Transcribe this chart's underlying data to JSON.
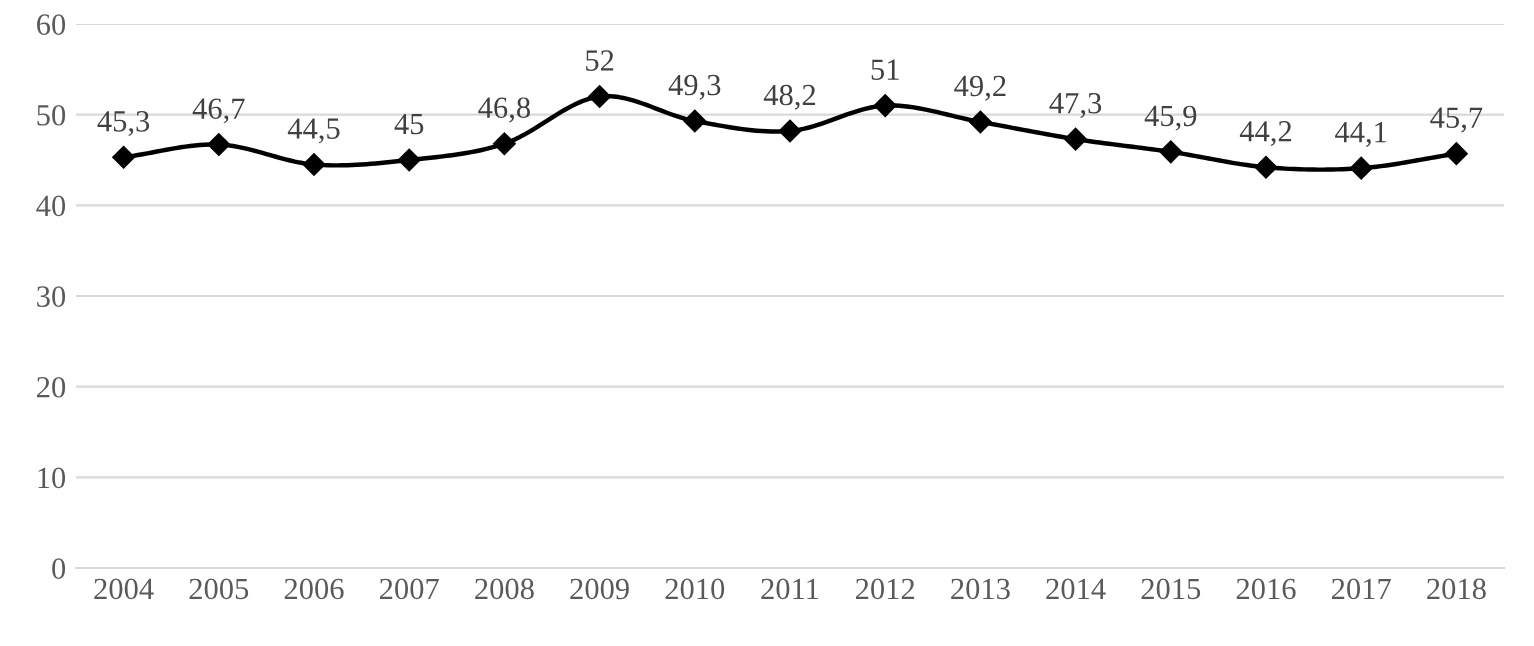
{
  "chart_data": {
    "type": "line",
    "categories": [
      "2004",
      "2005",
      "2006",
      "2007",
      "2008",
      "2009",
      "2010",
      "2011",
      "2012",
      "2013",
      "2014",
      "2015",
      "2016",
      "2017",
      "2018"
    ],
    "series": [
      {
        "color": "#000000",
        "values": [
          45.3,
          46.7,
          44.5,
          45,
          46.8,
          52,
          49.3,
          48.2,
          51,
          49.2,
          47.3,
          45.9,
          44.2,
          44.1,
          45.7
        ],
        "value_labels": [
          "45,3",
          "46,7",
          "44,5",
          "45",
          "46,8",
          "52",
          "49,3",
          "48,2",
          "51",
          "49,2",
          "47,3",
          "45,9",
          "44,2",
          "44,1",
          "45,7"
        ]
      }
    ],
    "ylim": [
      0,
      60
    ],
    "yticks": [
      0,
      10,
      20,
      30,
      40,
      50,
      60
    ],
    "grid": "y",
    "marker": "diamond",
    "line_style": "solid",
    "legend": false
  }
}
